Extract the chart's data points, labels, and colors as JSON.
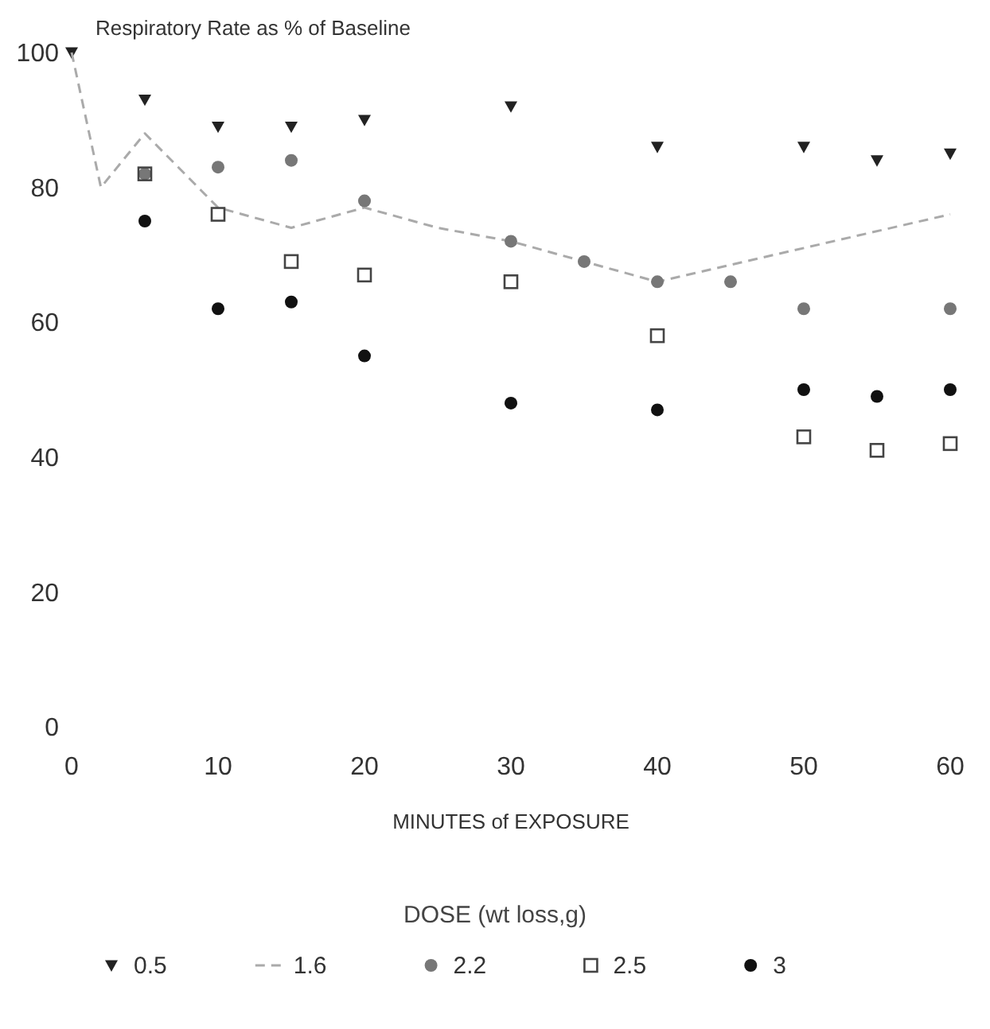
{
  "chart_data": {
    "type": "scatter",
    "title": "Respiratory Rate as % of Baseline",
    "xlabel": "MINUTES of EXPOSURE",
    "legend_title": "DOSE (wt loss,g)",
    "legend": "bottom",
    "grid": false,
    "xlim": [
      0,
      60
    ],
    "xticks": [
      0,
      10,
      20,
      30,
      40,
      50,
      60
    ],
    "ylim": [
      0,
      100
    ],
    "yticks": [
      0,
      20,
      40,
      60,
      80,
      100
    ],
    "series": [
      {
        "name": "0.5",
        "color": "#222222",
        "marker": "triangle",
        "x": [
          0,
          5,
          10,
          15,
          20,
          30,
          40,
          50,
          55,
          60
        ],
        "values": [
          100,
          93,
          89,
          89,
          90,
          92,
          86,
          86,
          84,
          85
        ]
      },
      {
        "name": "1.6",
        "type": "line",
        "line_style": "dashed",
        "marker": "none",
        "color": "#aaaaaa",
        "x": [
          0,
          2,
          5,
          10,
          15,
          20,
          25,
          30,
          40,
          60
        ],
        "values": [
          100,
          80,
          88,
          77,
          74,
          77,
          74,
          72,
          66,
          76
        ]
      },
      {
        "name": "2.2",
        "color": "#777777",
        "marker": "circle",
        "x": [
          5,
          10,
          15,
          20,
          30,
          35,
          40,
          45,
          50,
          60
        ],
        "values": [
          82,
          83,
          84,
          78,
          72,
          69,
          66,
          66,
          62,
          62
        ]
      },
      {
        "name": "2.5",
        "color": "#444444",
        "marker": "square",
        "x": [
          5,
          10,
          15,
          20,
          30,
          40,
          50,
          55,
          60
        ],
        "values": [
          82,
          76,
          69,
          67,
          66,
          58,
          43,
          41,
          42
        ]
      },
      {
        "name": "3",
        "color": "#111111",
        "marker": "circle",
        "x": [
          5,
          10,
          15,
          20,
          30,
          40,
          50,
          55,
          60
        ],
        "values": [
          75,
          62,
          63,
          55,
          48,
          47,
          50,
          49,
          50
        ]
      }
    ]
  }
}
